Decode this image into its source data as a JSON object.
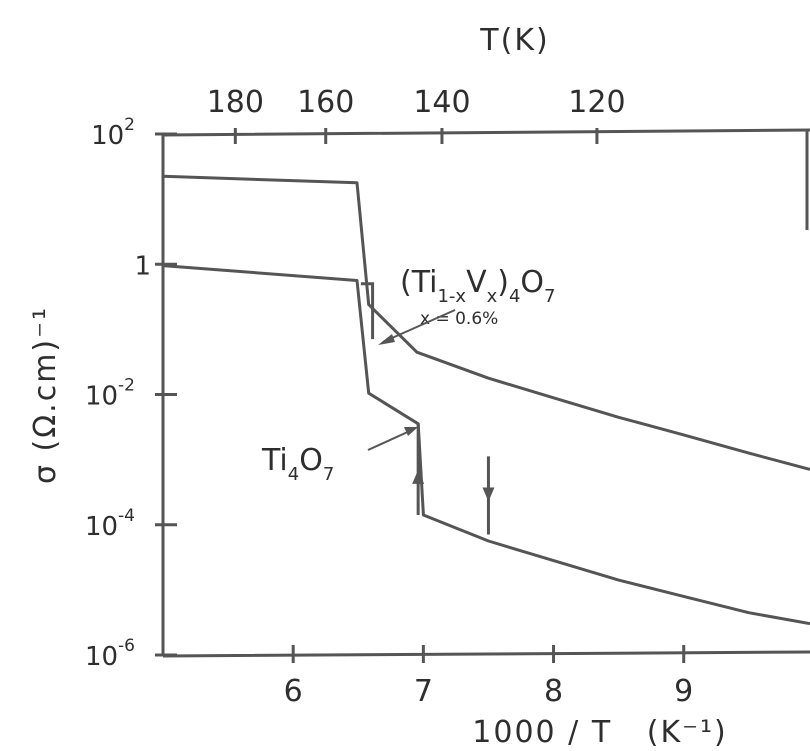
{
  "chart_data": {
    "type": "line",
    "title": "",
    "xlabel": "1000 / T   (K⁻¹)",
    "ylabel": "σ (Ω.cm)⁻¹",
    "top_xlabel": "T(K)",
    "x_range": [
      5.0,
      9.97
    ],
    "y_log": true,
    "y_range_log10": [
      -6,
      2
    ],
    "x_ticks": [
      6,
      7,
      8,
      9
    ],
    "x_tick_labels": [
      "6",
      "7",
      "8",
      "9"
    ],
    "y_ticks_log10": [
      2,
      0,
      -2,
      -4,
      -6
    ],
    "y_tick_labels": [
      {
        "base": "10",
        "exp": "2"
      },
      {
        "base": "1",
        "exp": ""
      },
      {
        "base": "10",
        "exp": "-2"
      },
      {
        "base": "10",
        "exp": "-4"
      },
      {
        "base": "10",
        "exp": "-6"
      }
    ],
    "top_ticks_T": [
      180,
      160,
      140,
      120
    ],
    "top_tick_labels": [
      "180",
      "160",
      "140",
      "120"
    ],
    "series": [
      {
        "name": "(Ti1-xVx)4O7 x=0.6%",
        "points": [
          [
            5.0,
            1.35
          ],
          [
            6.49,
            1.25
          ],
          [
            6.58,
            -0.62
          ],
          [
            6.95,
            -1.35
          ],
          [
            7.5,
            -1.75
          ],
          [
            8.0,
            -2.05
          ],
          [
            8.5,
            -2.35
          ],
          [
            9.0,
            -2.62
          ],
          [
            9.5,
            -2.9
          ],
          [
            9.97,
            -3.15
          ]
        ]
      },
      {
        "name": "Ti4O7",
        "points": [
          [
            5.0,
            -0.02
          ],
          [
            6.49,
            -0.25
          ],
          [
            6.58,
            -1.98
          ],
          [
            6.96,
            -2.45
          ],
          [
            7.0,
            -3.85
          ],
          [
            7.25,
            -4.05
          ],
          [
            7.5,
            -4.25
          ],
          [
            8.0,
            -4.55
          ],
          [
            8.5,
            -4.85
          ],
          [
            9.0,
            -5.1
          ],
          [
            9.5,
            -5.35
          ],
          [
            9.97,
            -5.52
          ]
        ]
      }
    ],
    "hysteresis": {
      "cooling_x": 7.5,
      "heating_x": 6.96,
      "cooling_y_range_log10": [
        -2.95,
        -4.15
      ],
      "heating_y_range_log10": [
        -2.45,
        -3.85
      ],
      "small_step": {
        "x": [
          6.52,
          6.61
        ],
        "y_log10": [
          -0.3,
          -1.15
        ]
      }
    },
    "annotations": [
      {
        "text_parts": [
          "(Ti",
          "1-x",
          "V",
          "x",
          ")",
          "4",
          "O",
          "7"
        ],
        "sub": "x = 0.6%",
        "points_to": "upper curve"
      },
      {
        "text_parts": [
          "Ti",
          "4",
          "O",
          "7"
        ],
        "points_to": "lower curve"
      }
    ],
    "grid": false,
    "legend": "none"
  }
}
